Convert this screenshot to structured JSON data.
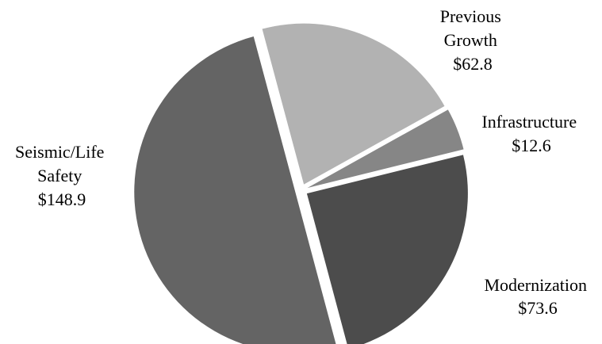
{
  "chart_data": {
    "type": "pie",
    "title": "",
    "categories": [
      "Previous Growth",
      "Infrastructure",
      "Modernization",
      "Seismic/Life Safety"
    ],
    "values": [
      62.8,
      12.6,
      73.6,
      148.9
    ],
    "value_labels": [
      "$62.8",
      "$12.6",
      "$73.6",
      "$148.9"
    ],
    "label_lines": [
      [
        "Previous",
        "Growth",
        "$62.8"
      ],
      [
        "Infrastructure",
        "$12.6"
      ],
      [
        "Modernization",
        "$73.6"
      ],
      [
        "Seismic/Life",
        "Safety",
        "$148.9"
      ]
    ],
    "colors": [
      "#b2b2b2",
      "#868686",
      "#4c4c4c",
      "#646464"
    ],
    "exploded": true,
    "start_angle_deg": -15
  }
}
